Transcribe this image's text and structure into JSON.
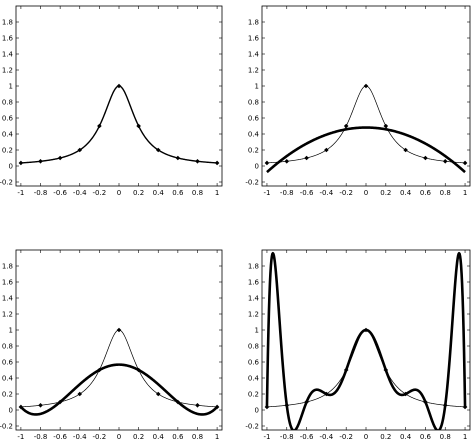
{
  "chart_data": [
    {
      "type": "line",
      "panel": "top-left",
      "title": "",
      "xlabel": "",
      "ylabel": "",
      "xlim": [
        -1.05,
        1.05
      ],
      "ylim": [
        -0.25,
        2.0
      ],
      "xticks": [
        -1,
        -0.8,
        -0.6,
        -0.4,
        -0.2,
        0,
        0.2,
        0.4,
        0.6,
        0.8,
        1
      ],
      "yticks": [
        -0.2,
        0,
        0.2,
        0.4,
        0.6,
        0.8,
        1,
        1.2,
        1.4,
        1.6,
        1.8
      ],
      "grid": false,
      "nodes": {
        "x": [
          -1,
          -0.8,
          -0.6,
          -0.4,
          -0.2,
          0,
          0.2,
          0.4,
          0.6,
          0.8,
          1
        ],
        "y": [
          0.038,
          0.059,
          0.1,
          0.2,
          0.5,
          1.0,
          0.5,
          0.2,
          0.1,
          0.059,
          0.038
        ]
      },
      "series": [
        {
          "function": "runge",
          "style": "medium"
        }
      ]
    },
    {
      "type": "line",
      "panel": "top-right",
      "title": "",
      "xlabel": "",
      "ylabel": "",
      "xlim": [
        -1.05,
        1.05
      ],
      "ylim": [
        -0.25,
        2.0
      ],
      "xticks": [
        -1,
        -0.8,
        -0.6,
        -0.4,
        -0.2,
        0,
        0.2,
        0.4,
        0.6,
        0.8,
        1
      ],
      "yticks": [
        -0.2,
        0,
        0.2,
        0.4,
        0.6,
        0.8,
        1,
        1.2,
        1.4,
        1.6,
        1.8
      ],
      "grid": false,
      "nodes": {
        "x": [
          -1,
          -0.8,
          -0.6,
          -0.4,
          -0.2,
          0,
          0.2,
          0.4,
          0.6,
          0.8,
          1
        ],
        "y": [
          0.038,
          0.059,
          0.1,
          0.2,
          0.5,
          1.0,
          0.5,
          0.2,
          0.1,
          0.059,
          0.038
        ]
      },
      "series": [
        {
          "function": "runge",
          "style": "thin"
        },
        {
          "function": "parabola",
          "coefficients": [
            0.4808,
            0,
            -0.5577
          ],
          "style": "thick"
        }
      ]
    },
    {
      "type": "line",
      "panel": "bottom-left",
      "title": "",
      "xlabel": "",
      "ylabel": "",
      "xlim": [
        -1.05,
        1.05
      ],
      "ylim": [
        -0.25,
        2.0
      ],
      "xticks": [
        -1,
        -0.8,
        -0.6,
        -0.4,
        -0.2,
        0,
        0.2,
        0.4,
        0.6,
        0.8,
        1
      ],
      "yticks": [
        -0.2,
        0,
        0.2,
        0.4,
        0.6,
        0.8,
        1,
        1.2,
        1.4,
        1.6,
        1.8
      ],
      "grid": false,
      "nodes": {
        "x": [
          -1,
          -0.8,
          -0.6,
          -0.4,
          -0.2,
          0,
          0.2,
          0.4,
          0.6,
          0.8,
          1
        ],
        "y": [
          0.038,
          0.059,
          0.1,
          0.2,
          0.5,
          1.0,
          0.5,
          0.2,
          0.1,
          0.059,
          0.038
        ]
      },
      "series": [
        {
          "function": "runge",
          "style": "thin"
        },
        {
          "function": "interpolant",
          "nodes_x": [
            -1,
            -0.6,
            -0.2,
            0.2,
            0.6,
            1
          ],
          "style": "thick"
        }
      ]
    },
    {
      "type": "line",
      "panel": "bottom-right",
      "title": "",
      "xlabel": "",
      "ylabel": "",
      "xlim": [
        -1.05,
        1.05
      ],
      "ylim": [
        -0.25,
        2.0
      ],
      "xticks": [
        -1,
        -0.8,
        -0.6,
        -0.4,
        -0.2,
        0,
        0.2,
        0.4,
        0.6,
        0.8,
        1
      ],
      "yticks": [
        -0.2,
        0,
        0.2,
        0.4,
        0.6,
        0.8,
        1,
        1.2,
        1.4,
        1.6,
        1.8
      ],
      "grid": false,
      "nodes": {
        "x": [
          -1,
          -0.8,
          -0.6,
          -0.4,
          -0.2,
          0,
          0.2,
          0.4,
          0.6,
          0.8,
          1
        ],
        "y": [
          0.038,
          0.059,
          0.1,
          0.2,
          0.5,
          1.0,
          0.5,
          0.2,
          0.1,
          0.059,
          0.038
        ]
      },
      "series": [
        {
          "function": "runge",
          "style": "thin"
        },
        {
          "function": "interpolant",
          "nodes_x": [
            -1,
            -0.8,
            -0.6,
            -0.4,
            -0.2,
            0,
            0.2,
            0.4,
            0.6,
            0.8,
            1
          ],
          "style": "thick"
        }
      ]
    }
  ]
}
